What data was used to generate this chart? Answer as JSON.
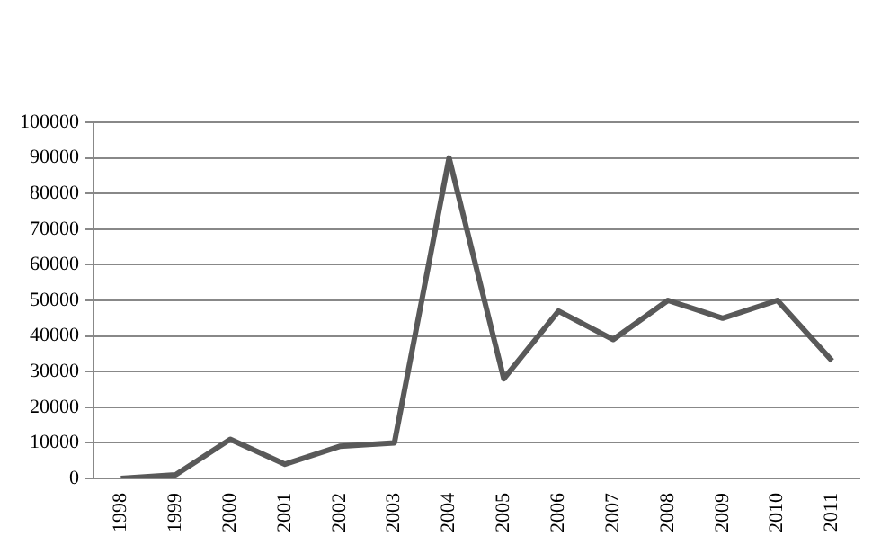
{
  "chart_data": {
    "type": "line",
    "categories": [
      "1998",
      "1999",
      "2000",
      "2001",
      "2002",
      "2003",
      "2004",
      "2005",
      "2006",
      "2007",
      "2008",
      "2009",
      "2010",
      "2011"
    ],
    "series": [
      {
        "color": "#595959",
        "values": [
          0,
          1000,
          11000,
          4000,
          9000,
          10000,
          90000,
          28000,
          47000,
          39000,
          50000,
          45000,
          50000,
          33000
        ]
      }
    ],
    "ylim": [
      0,
      100000
    ],
    "yticks": [
      0,
      10000,
      20000,
      30000,
      40000,
      50000,
      60000,
      70000,
      80000,
      90000,
      100000
    ],
    "grid": "y",
    "legend": false,
    "marker": "none",
    "line_style": "solid"
  }
}
